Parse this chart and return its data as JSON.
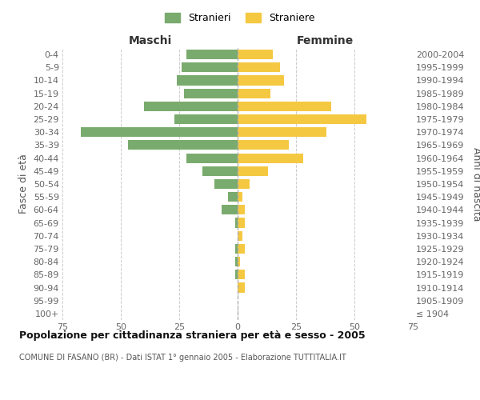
{
  "age_groups": [
    "100+",
    "95-99",
    "90-94",
    "85-89",
    "80-84",
    "75-79",
    "70-74",
    "65-69",
    "60-64",
    "55-59",
    "50-54",
    "45-49",
    "40-44",
    "35-39",
    "30-34",
    "25-29",
    "20-24",
    "15-19",
    "10-14",
    "5-9",
    "0-4"
  ],
  "birth_years": [
    "≤ 1904",
    "1905-1909",
    "1910-1914",
    "1915-1919",
    "1920-1924",
    "1925-1929",
    "1930-1934",
    "1935-1939",
    "1940-1944",
    "1945-1949",
    "1950-1954",
    "1955-1959",
    "1960-1964",
    "1965-1969",
    "1970-1974",
    "1975-1979",
    "1980-1984",
    "1985-1989",
    "1990-1994",
    "1995-1999",
    "2000-2004"
  ],
  "maschi": [
    0,
    0,
    0,
    1,
    1,
    1,
    0,
    1,
    7,
    4,
    10,
    15,
    22,
    47,
    67,
    27,
    40,
    23,
    26,
    24,
    22
  ],
  "femmine": [
    0,
    0,
    3,
    3,
    1,
    3,
    2,
    3,
    3,
    2,
    5,
    13,
    28,
    22,
    38,
    55,
    40,
    14,
    20,
    18,
    15
  ],
  "color_maschi": "#7aab6e",
  "color_femmine": "#f5c842",
  "xlim": 75,
  "title": "Popolazione per cittadinanza straniera per età e sesso - 2005",
  "subtitle": "COMUNE DI FASANO (BR) - Dati ISTAT 1° gennaio 2005 - Elaborazione TUTTITALIA.IT",
  "ylabel_left": "Fasce di età",
  "ylabel_right": "Anni di nascita",
  "label_maschi": "Maschi",
  "label_femmine": "Femmine",
  "legend_maschi": "Stranieri",
  "legend_femmine": "Straniere",
  "background_color": "#ffffff",
  "grid_color": "#cccccc"
}
